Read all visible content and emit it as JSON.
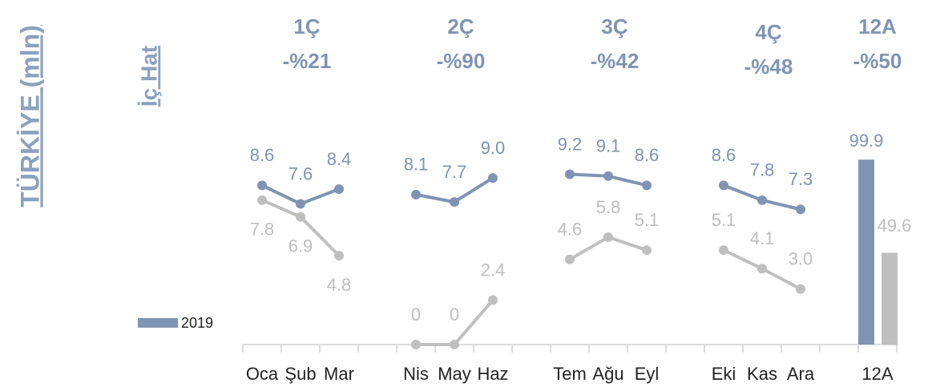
{
  "chart_data": {
    "type": "line",
    "title": "TÜRKİYE (mln)",
    "subtitle": "İç Hat",
    "categories": [
      "Oca",
      "Şub",
      "Mar",
      "Nis",
      "May",
      "Haz",
      "Tem",
      "Ağu",
      "Eyl",
      "Eki",
      "Kas",
      "Ara"
    ],
    "total_category": "12A",
    "quarters": [
      {
        "name": "1Ç",
        "change": "-%21"
      },
      {
        "name": "2Ç",
        "change": "-%90"
      },
      {
        "name": "3Ç",
        "change": "-%42"
      },
      {
        "name": "4Ç",
        "change": "-%48"
      },
      {
        "name": "12A",
        "change": "-%50"
      }
    ],
    "series": [
      {
        "name": "2019",
        "color": "#7f94b3",
        "values": [
          8.6,
          7.6,
          8.4,
          8.1,
          7.7,
          9.0,
          9.2,
          9.1,
          8.6,
          8.6,
          7.8,
          7.3
        ],
        "value_labels": [
          "8.6",
          "7.6",
          "8.4",
          "8.1",
          "7.7",
          "9.0",
          "9.2",
          "9.1",
          "8.6",
          "8.6",
          "7.8",
          "7.3"
        ],
        "total": 99.9,
        "total_label": "99.9"
      },
      {
        "color": "#bfbfbf",
        "values": [
          7.8,
          6.9,
          4.8,
          0,
          0,
          2.4,
          4.6,
          5.8,
          5.1,
          5.1,
          4.1,
          3.0
        ],
        "value_labels": [
          "7.8",
          "6.9",
          "4.8",
          "0",
          "0",
          "2.4",
          "4.6",
          "5.8",
          "5.1",
          "5.1",
          "4.1",
          "3.0"
        ],
        "total": 49.6,
        "total_label": "49.6"
      }
    ],
    "ylim": [
      0,
      10
    ],
    "y2lim": [
      0,
      100
    ],
    "legend": "left"
  }
}
